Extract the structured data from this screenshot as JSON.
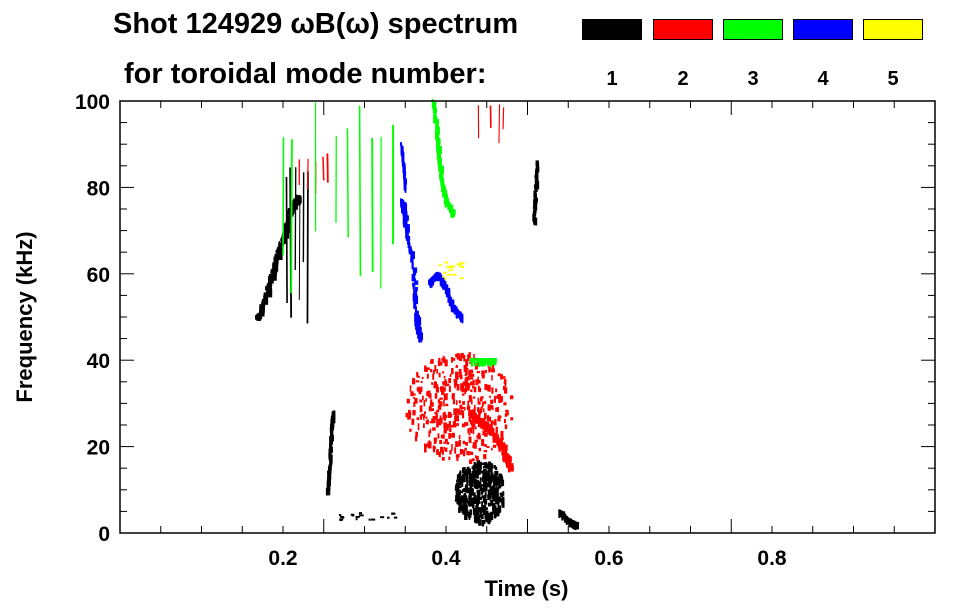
{
  "header": {
    "title_line1": "Shot 124929 ωB(ω) spectrum",
    "title_line2": "for toroidal mode number:"
  },
  "legend": [
    {
      "label": "1",
      "color": "#000000"
    },
    {
      "label": "2",
      "color": "#ff0000"
    },
    {
      "label": "3",
      "color": "#00ff00"
    },
    {
      "label": "4",
      "color": "#0000ff"
    },
    {
      "label": "5",
      "color": "#ffff00"
    }
  ],
  "chart_data": {
    "type": "heatmap",
    "xlabel": "Time (s)",
    "ylabel": "Frequency (kHz)",
    "xlim": [
      0.0,
      1.0
    ],
    "ylim": [
      0,
      100
    ],
    "x_ticks": [
      0.2,
      0.4,
      0.6,
      0.8
    ],
    "y_ticks": [
      0,
      20,
      40,
      60,
      80,
      100
    ],
    "features": [
      {
        "mode": 1,
        "color": "#000000",
        "kind": "band",
        "points": [
          [
            0.17,
            50
          ],
          [
            0.18,
            55
          ],
          [
            0.19,
            62
          ],
          [
            0.2,
            68
          ],
          [
            0.21,
            75
          ],
          [
            0.22,
            78
          ]
        ],
        "width": 7
      },
      {
        "mode": 1,
        "color": "#000000",
        "kind": "lines",
        "t": [
          0.205,
          0.21,
          0.215,
          0.22,
          0.225,
          0.23
        ],
        "f": [
          48,
          85
        ]
      },
      {
        "mode": 1,
        "color": "#000000",
        "kind": "blob",
        "t": [
          0.41,
          0.47
        ],
        "f": [
          3,
          17
        ]
      },
      {
        "mode": 1,
        "color": "#000000",
        "kind": "band",
        "points": [
          [
            0.255,
            10
          ],
          [
            0.258,
            18
          ],
          [
            0.26,
            25
          ],
          [
            0.262,
            28
          ]
        ],
        "width": 4
      },
      {
        "mode": 1,
        "color": "#000000",
        "kind": "band",
        "points": [
          [
            0.508,
            72
          ],
          [
            0.51,
            80
          ],
          [
            0.512,
            86
          ]
        ],
        "width": 4
      },
      {
        "mode": 1,
        "color": "#000000",
        "kind": "band",
        "points": [
          [
            0.54,
            5
          ],
          [
            0.55,
            3
          ],
          [
            0.56,
            2
          ]
        ],
        "width": 4
      },
      {
        "mode": 1,
        "color": "#000000",
        "kind": "dots",
        "t": [
          0.26,
          0.34
        ],
        "f": [
          3,
          5
        ]
      },
      {
        "mode": 2,
        "color": "#ff0000",
        "kind": "blob",
        "t": [
          0.35,
          0.48
        ],
        "f": [
          17,
          42
        ]
      },
      {
        "mode": 2,
        "color": "#ff0000",
        "kind": "band",
        "points": [
          [
            0.43,
            28
          ],
          [
            0.45,
            25
          ],
          [
            0.47,
            20
          ],
          [
            0.48,
            15
          ]
        ],
        "width": 8
      },
      {
        "mode": 2,
        "color": "#ff0000",
        "kind": "lines",
        "t": [
          0.22,
          0.23,
          0.24,
          0.25,
          0.255
        ],
        "f": [
          78,
          88
        ]
      },
      {
        "mode": 2,
        "color": "#ff0000",
        "kind": "lines",
        "t": [
          0.44,
          0.455,
          0.465,
          0.47
        ],
        "f": [
          90,
          100
        ]
      },
      {
        "mode": 3,
        "color": "#00ff00",
        "kind": "lines",
        "t": [
          0.2,
          0.21,
          0.24,
          0.265,
          0.28,
          0.295,
          0.31,
          0.32,
          0.335
        ],
        "f": [
          55,
          100
        ]
      },
      {
        "mode": 3,
        "color": "#00ff00",
        "kind": "band",
        "points": [
          [
            0.385,
            100
          ],
          [
            0.39,
            90
          ],
          [
            0.395,
            82
          ],
          [
            0.4,
            77
          ],
          [
            0.41,
            74
          ]
        ],
        "width": 5
      },
      {
        "mode": 3,
        "color": "#00ff00",
        "kind": "band",
        "points": [
          [
            0.43,
            40
          ],
          [
            0.45,
            40
          ],
          [
            0.46,
            40
          ]
        ],
        "width": 3
      },
      {
        "mode": 4,
        "color": "#0000ff",
        "kind": "band",
        "points": [
          [
            0.347,
            77
          ],
          [
            0.35,
            73
          ],
          [
            0.36,
            62
          ],
          [
            0.365,
            48
          ],
          [
            0.37,
            45
          ]
        ],
        "width": 6
      },
      {
        "mode": 4,
        "color": "#0000ff",
        "kind": "band",
        "points": [
          [
            0.38,
            58
          ],
          [
            0.39,
            60
          ],
          [
            0.4,
            57
          ],
          [
            0.41,
            52
          ],
          [
            0.42,
            50
          ]
        ],
        "width": 5
      },
      {
        "mode": 4,
        "color": "#0000ff",
        "kind": "band",
        "points": [
          [
            0.345,
            90
          ],
          [
            0.348,
            85
          ],
          [
            0.35,
            80
          ]
        ],
        "width": 3
      },
      {
        "mode": 5,
        "color": "#ffff00",
        "kind": "dots",
        "t": [
          0.39,
          0.42
        ],
        "f": [
          59,
          63
        ]
      }
    ]
  }
}
